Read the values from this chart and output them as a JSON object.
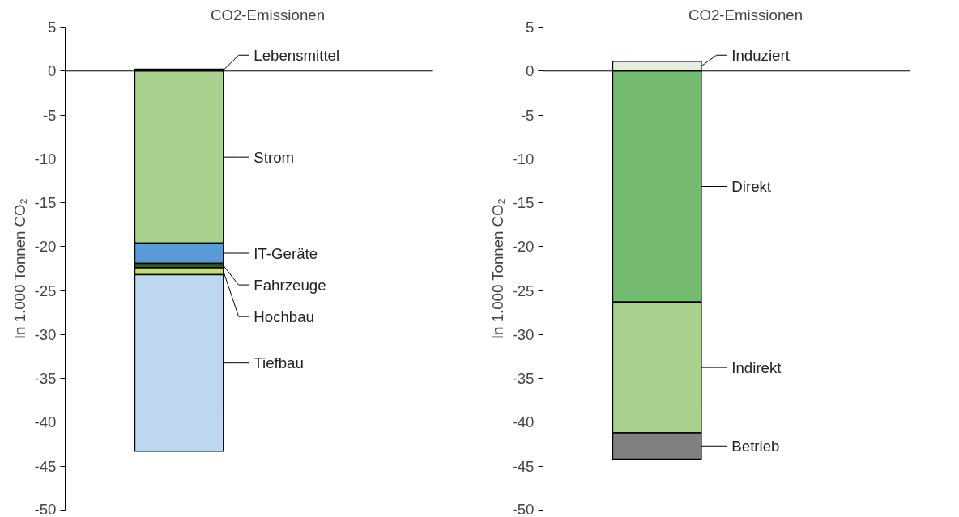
{
  "chart_data": [
    {
      "type": "bar",
      "title": "CO2-Emissionen",
      "ylabel": "In 1.000 Tonnen CO₂",
      "categories": [
        null
      ],
      "stacked": true,
      "ylim": [
        -50,
        5
      ],
      "yticks": [
        -50,
        -45,
        -40,
        -35,
        -30,
        -25,
        -20,
        -15,
        -10,
        -5,
        0,
        5
      ],
      "tick_labels": "y",
      "grid": false,
      "legend": "right",
      "ref_lines": [
        {
          "axis": "y",
          "value": 0
        }
      ],
      "series": [
        {
          "name": "Lebensmittel",
          "color": "#1f4e79",
          "values": [
            0.2
          ]
        },
        {
          "name": "Strom",
          "color": "#a9d18e",
          "values": [
            -19.6
          ]
        },
        {
          "name": "IT-Geräte",
          "color": "#5b9bd5",
          "values": [
            -2.3
          ]
        },
        {
          "name": "Fahrzeuge",
          "color": "#375623",
          "values": [
            -0.5
          ]
        },
        {
          "name": "Hochbau",
          "color": "#c5e06a",
          "values": [
            -0.8
          ]
        },
        {
          "name": "Tiefbau",
          "color": "#bdd7ee",
          "values": [
            -20.1
          ]
        }
      ]
    },
    {
      "type": "bar",
      "title": "CO2-Emissionen",
      "ylabel": "In 1.000 Tonnen CO₂",
      "categories": [
        null
      ],
      "stacked": true,
      "ylim": [
        -50,
        5
      ],
      "yticks": [
        -50,
        -45,
        -40,
        -35,
        -30,
        -25,
        -20,
        -15,
        -10,
        -5,
        0,
        5
      ],
      "tick_labels": "y",
      "grid": false,
      "legend": "right",
      "ref_lines": [
        {
          "axis": "y",
          "value": 0
        }
      ],
      "series": [
        {
          "name": "Induziert",
          "color": "#e2efda",
          "values": [
            1.1
          ]
        },
        {
          "name": "Direkt",
          "color": "#74bb6f",
          "values": [
            -26.3
          ]
        },
        {
          "name": "Indirekt",
          "color": "#a9d18e",
          "values": [
            -14.9
          ]
        },
        {
          "name": "Betrieb",
          "color": "#808080",
          "values": [
            -3.0
          ]
        }
      ]
    }
  ]
}
